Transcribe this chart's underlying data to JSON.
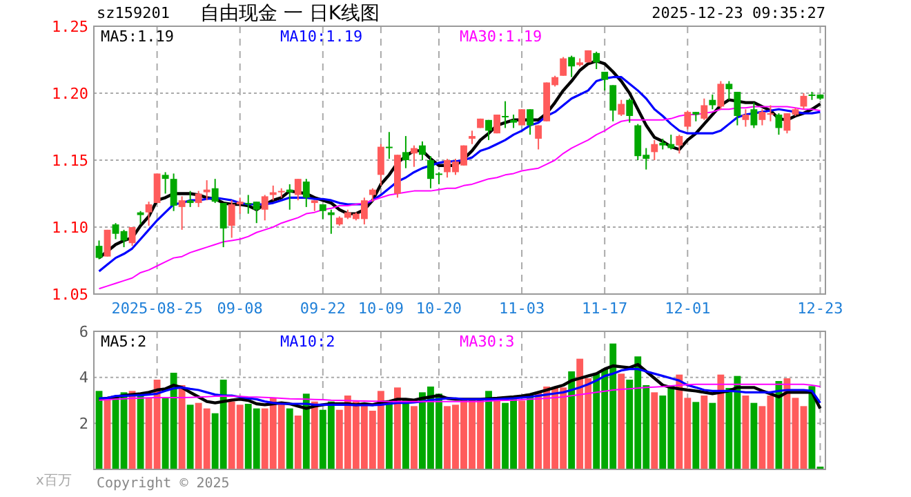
{
  "chart_data": [
    {
      "type": "candlestick",
      "title": "自由现金 一 日K线图",
      "subtitle": "sz159201",
      "annotations": [
        "2025-12-23 09:35:27"
      ],
      "categories": [
        null,
        null,
        null,
        null,
        null,
        null,
        null,
        "2025-08-25",
        null,
        null,
        null,
        null,
        null,
        null,
        null,
        null,
        null,
        "09-08",
        null,
        null,
        null,
        null,
        null,
        null,
        null,
        null,
        null,
        "09-22",
        null,
        null,
        null,
        null,
        null,
        null,
        "10-09",
        null,
        null,
        null,
        null,
        null,
        null,
        "10-20",
        null,
        null,
        null,
        null,
        null,
        null,
        null,
        null,
        null,
        "11-03",
        null,
        null,
        null,
        null,
        null,
        null,
        null,
        null,
        null,
        "11-17",
        null,
        null,
        null,
        null,
        null,
        null,
        null,
        null,
        null,
        "12-01",
        null,
        null,
        null,
        null,
        null,
        null,
        null,
        null,
        null,
        null,
        null,
        null,
        null,
        null,
        null,
        "12-23"
      ],
      "ohlc": [
        [
          1.086,
          1.09,
          1.076,
          1.077
        ],
        [
          1.078,
          1.098,
          1.078,
          1.098
        ],
        [
          1.102,
          1.103,
          1.091,
          1.095
        ],
        [
          1.097,
          1.098,
          1.085,
          1.09
        ],
        [
          1.088,
          1.1,
          1.086,
          1.1
        ],
        [
          1.111,
          1.112,
          1.102,
          1.109
        ],
        [
          1.111,
          1.119,
          1.101,
          1.117
        ],
        [
          1.118,
          1.14,
          1.118,
          1.14
        ],
        [
          1.139,
          1.141,
          1.125,
          1.136
        ],
        [
          1.136,
          1.14,
          1.112,
          1.116
        ],
        [
          1.115,
          1.123,
          1.098,
          1.12
        ],
        [
          1.12,
          1.127,
          1.115,
          1.118
        ],
        [
          1.118,
          1.127,
          1.115,
          1.125
        ],
        [
          1.126,
          1.135,
          1.12,
          1.128
        ],
        [
          1.129,
          1.136,
          1.118,
          1.119
        ],
        [
          1.118,
          1.118,
          1.085,
          1.099
        ],
        [
          1.101,
          1.12,
          1.092,
          1.117
        ],
        [
          1.117,
          1.122,
          1.11,
          1.119
        ],
        [
          1.118,
          1.124,
          1.11,
          1.117
        ],
        [
          1.119,
          1.119,
          1.103,
          1.113
        ],
        [
          1.113,
          1.124,
          1.105,
          1.123
        ],
        [
          1.124,
          1.131,
          1.12,
          1.126
        ],
        [
          1.126,
          1.129,
          1.122,
          1.127
        ],
        [
          1.128,
          1.132,
          1.113,
          1.126
        ],
        [
          1.124,
          1.136,
          1.12,
          1.136
        ],
        [
          1.134,
          1.136,
          1.115,
          1.122
        ],
        [
          1.118,
          1.12,
          1.112,
          1.12
        ],
        [
          1.117,
          1.117,
          1.106,
          1.112
        ],
        [
          1.111,
          1.113,
          1.095,
          1.109
        ],
        [
          1.102,
          1.108,
          1.101,
          1.107
        ],
        [
          1.107,
          1.113,
          1.106,
          1.111
        ],
        [
          1.106,
          1.111,
          1.105,
          1.11
        ],
        [
          1.106,
          1.122,
          1.102,
          1.12
        ],
        [
          1.124,
          1.129,
          1.119,
          1.128
        ],
        [
          1.139,
          1.162,
          1.131,
          1.16
        ],
        [
          1.16,
          1.171,
          1.151,
          1.159
        ],
        [
          1.125,
          1.154,
          1.122,
          1.154
        ],
        [
          1.156,
          1.168,
          1.144,
          1.15
        ],
        [
          1.155,
          1.161,
          1.145,
          1.159
        ],
        [
          1.161,
          1.164,
          1.15,
          1.154
        ],
        [
          1.15,
          1.153,
          1.129,
          1.136
        ],
        [
          1.14,
          1.141,
          1.132,
          1.139
        ],
        [
          1.141,
          1.151,
          1.137,
          1.15
        ],
        [
          1.141,
          1.151,
          1.139,
          1.149
        ],
        [
          1.146,
          1.161,
          1.146,
          1.161
        ],
        [
          1.166,
          1.172,
          1.162,
          1.168
        ],
        [
          1.174,
          1.181,
          1.174,
          1.181
        ],
        [
          1.18,
          1.18,
          1.165,
          1.172
        ],
        [
          1.17,
          1.184,
          1.17,
          1.184
        ],
        [
          1.183,
          1.194,
          1.174,
          1.182
        ],
        [
          1.18,
          1.184,
          1.174,
          1.178
        ],
        [
          1.176,
          1.188,
          1.176,
          1.188
        ],
        [
          1.188,
          1.188,
          1.169,
          1.176
        ],
        [
          1.166,
          1.176,
          1.158,
          1.176
        ],
        [
          1.179,
          1.208,
          1.179,
          1.208
        ],
        [
          1.206,
          1.213,
          1.205,
          1.212
        ],
        [
          1.213,
          1.227,
          1.213,
          1.226
        ],
        [
          1.227,
          1.228,
          1.212,
          1.22
        ],
        [
          1.221,
          1.226,
          1.22,
          1.223
        ],
        [
          1.223,
          1.232,
          1.223,
          1.232
        ],
        [
          1.23,
          1.231,
          1.218,
          1.223
        ],
        [
          1.216,
          1.216,
          1.202,
          1.21
        ],
        [
          1.206,
          1.206,
          1.179,
          1.187
        ],
        [
          1.184,
          1.195,
          1.183,
          1.192
        ],
        [
          1.195,
          1.196,
          1.178,
          1.183
        ],
        [
          1.176,
          1.177,
          1.15,
          1.153
        ],
        [
          1.154,
          1.159,
          1.143,
          1.151
        ],
        [
          1.156,
          1.165,
          1.15,
          1.162
        ],
        [
          1.163,
          1.166,
          1.158,
          1.161
        ],
        [
          1.162,
          1.169,
          1.158,
          1.159
        ],
        [
          1.161,
          1.169,
          1.155,
          1.168
        ],
        [
          1.175,
          1.187,
          1.173,
          1.186
        ],
        [
          1.186,
          1.186,
          1.179,
          1.184
        ],
        [
          1.181,
          1.196,
          1.18,
          1.191
        ],
        [
          1.195,
          1.199,
          1.188,
          1.191
        ],
        [
          1.19,
          1.209,
          1.188,
          1.207
        ],
        [
          1.207,
          1.209,
          1.195,
          1.203
        ],
        [
          1.201,
          1.201,
          1.176,
          1.183
        ],
        [
          1.18,
          1.188,
          1.175,
          1.184
        ],
        [
          1.188,
          1.193,
          1.174,
          1.176
        ],
        [
          1.18,
          1.188,
          1.176,
          1.186
        ],
        [
          1.184,
          1.191,
          1.179,
          1.185
        ],
        [
          1.184,
          1.185,
          1.169,
          1.174
        ],
        [
          1.172,
          1.185,
          1.17,
          1.185
        ],
        [
          1.184,
          1.189,
          1.183,
          1.188
        ],
        [
          1.19,
          1.2,
          1.188,
          1.198
        ],
        [
          1.199,
          1.201,
          1.195,
          1.198
        ],
        [
          1.199,
          1.199,
          1.195,
          1.196
        ]
      ],
      "colors": [
        "#00a800",
        "#ff5b5b",
        "#00a800",
        "#00a800",
        "#ff5b5b",
        "#00a800",
        "#ff5b5b",
        "#ff5b5b",
        "#00a800",
        "#00a800",
        "#ff5b5b",
        "#00a800",
        "#ff5b5b",
        "#ff5b5b",
        "#00a800",
        "#00a800",
        "#ff5b5b",
        "#ff5b5b",
        "#00a800",
        "#00a800",
        "#ff5b5b",
        "#ff5b5b",
        "#ff5b5b",
        "#00a800",
        "#ff5b5b",
        "#00a800",
        "#ff5b5b",
        "#00a800",
        "#00a800",
        "#ff5b5b",
        "#ff5b5b",
        "#ff5b5b",
        "#ff5b5b",
        "#ff5b5b",
        "#ff5b5b",
        "#00a800",
        "#ff5b5b",
        "#00a800",
        "#ff5b5b",
        "#00a800",
        "#00a800",
        "#00a800",
        "#ff5b5b",
        "#ff5b5b",
        "#ff5b5b",
        "#ff5b5b",
        "#ff5b5b",
        "#00a800",
        "#ff5b5b",
        "#00a800",
        "#00a800",
        "#ff5b5b",
        "#00a800",
        "#ff5b5b",
        "#ff5b5b",
        "#ff5b5b",
        "#ff5b5b",
        "#00a800",
        "#ff5b5b",
        "#ff5b5b",
        "#00a800",
        "#00a800",
        "#00a800",
        "#ff5b5b",
        "#00a800",
        "#00a800",
        "#00a800",
        "#ff5b5b",
        "#00a800",
        "#00a800",
        "#ff5b5b",
        "#ff5b5b",
        "#00a800",
        "#ff5b5b",
        "#00a800",
        "#ff5b5b",
        "#00a800",
        "#00a800",
        "#ff5b5b",
        "#00a800",
        "#ff5b5b",
        "#ff5b5b",
        "#00a800",
        "#ff5b5b",
        "#ff5b5b",
        "#ff5b5b",
        "#00a800",
        "#00a800"
      ],
      "series": [
        {
          "type": "line",
          "name": "MA5:1.19",
          "color": "#000000",
          "values": [
            1.077,
            1.082,
            1.087,
            1.09,
            1.092,
            1.101,
            1.108,
            1.12,
            1.122,
            1.125,
            1.125,
            1.125,
            1.124,
            1.122,
            1.121,
            1.118,
            1.117,
            1.117,
            1.116,
            1.113,
            1.117,
            1.12,
            1.122,
            1.127,
            1.126,
            1.125,
            1.122,
            1.12,
            1.118,
            1.113,
            1.11,
            1.11,
            1.113,
            1.12,
            1.132,
            1.139,
            1.148,
            1.153,
            1.157,
            1.157,
            1.151,
            1.146,
            1.146,
            1.146,
            1.151,
            1.157,
            1.165,
            1.17,
            1.176,
            1.178,
            1.18,
            1.18,
            1.18,
            1.18,
            1.185,
            1.193,
            1.202,
            1.209,
            1.217,
            1.222,
            1.224,
            1.222,
            1.216,
            1.209,
            1.2,
            1.188,
            1.176,
            1.167,
            1.164,
            1.16,
            1.158,
            1.165,
            1.17,
            1.177,
            1.184,
            1.191,
            1.195,
            1.194,
            1.193,
            1.193,
            1.19,
            1.187,
            1.181,
            1.18,
            1.183,
            1.185,
            1.188,
            1.192
          ]
        },
        {
          "type": "line",
          "name": "MA10:1.19",
          "color": "#0000ff",
          "values": [
            1.067,
            1.072,
            1.077,
            1.08,
            1.084,
            1.091,
            1.098,
            1.105,
            1.111,
            1.117,
            1.118,
            1.12,
            1.12,
            1.121,
            1.122,
            1.121,
            1.12,
            1.118,
            1.117,
            1.117,
            1.117,
            1.118,
            1.12,
            1.122,
            1.122,
            1.122,
            1.121,
            1.121,
            1.12,
            1.118,
            1.117,
            1.117,
            1.117,
            1.12,
            1.124,
            1.129,
            1.134,
            1.137,
            1.141,
            1.144,
            1.146,
            1.148,
            1.149,
            1.149,
            1.15,
            1.152,
            1.157,
            1.159,
            1.162,
            1.165,
            1.169,
            1.172,
            1.176,
            1.178,
            1.183,
            1.186,
            1.191,
            1.196,
            1.199,
            1.202,
            1.209,
            1.211,
            1.212,
            1.212,
            1.207,
            1.202,
            1.196,
            1.188,
            1.183,
            1.177,
            1.172,
            1.17,
            1.17,
            1.17,
            1.17,
            1.172,
            1.177,
            1.182,
            1.184,
            1.185,
            1.186,
            1.187,
            1.188,
            1.187,
            1.186,
            1.185,
            1.185,
            1.186
          ]
        },
        {
          "type": "line",
          "name": "MA30:1.19",
          "color": "#ff00ff",
          "values": [
            1.054,
            1.056,
            1.058,
            1.06,
            1.062,
            1.066,
            1.068,
            1.071,
            1.074,
            1.077,
            1.078,
            1.081,
            1.083,
            1.085,
            1.087,
            1.089,
            1.09,
            1.091,
            1.093,
            1.096,
            1.098,
            1.1,
            1.103,
            1.105,
            1.107,
            1.11,
            1.111,
            1.113,
            1.114,
            1.116,
            1.116,
            1.117,
            1.118,
            1.12,
            1.122,
            1.124,
            1.125,
            1.126,
            1.127,
            1.127,
            1.127,
            1.128,
            1.129,
            1.129,
            1.131,
            1.132,
            1.134,
            1.136,
            1.137,
            1.139,
            1.14,
            1.142,
            1.143,
            1.144,
            1.147,
            1.15,
            1.155,
            1.159,
            1.162,
            1.165,
            1.169,
            1.172,
            1.176,
            1.179,
            1.18,
            1.18,
            1.18,
            1.18,
            1.18,
            1.181,
            1.183,
            1.184,
            1.184,
            1.185,
            1.186,
            1.188,
            1.188,
            1.189,
            1.189,
            1.19,
            1.19,
            1.19,
            1.19,
            1.19,
            1.189,
            1.188,
            1.188,
            1.187
          ]
        }
      ],
      "ylim": [
        1.05,
        1.25
      ],
      "yticks": [
        {
          "value": 1.05,
          "label": "1.05"
        },
        {
          "value": 1.1,
          "label": "1.10"
        },
        {
          "value": 1.15,
          "label": "1.15"
        },
        {
          "value": 1.2,
          "label": "1.20"
        },
        {
          "value": 1.25,
          "label": "1.25"
        }
      ],
      "grid": true,
      "legend": "top left"
    },
    {
      "type": "bar",
      "ylabel": "x百万",
      "annotations": [
        "Copyright © 2025"
      ],
      "categories": [
        null,
        null,
        null,
        null,
        null,
        null,
        null,
        null,
        null,
        null,
        null,
        null,
        null,
        null,
        null,
        null,
        null,
        null,
        null,
        null,
        null,
        null,
        null,
        null,
        null,
        null,
        null,
        null,
        null,
        null,
        null,
        null,
        null,
        null,
        null,
        null,
        null,
        null,
        null,
        null,
        null,
        null,
        null,
        null,
        null,
        null,
        null,
        null,
        null,
        null,
        null,
        null,
        null,
        null,
        null,
        null,
        null,
        null,
        null,
        null,
        null,
        null,
        null,
        null,
        null,
        null,
        null,
        null,
        null,
        null,
        null,
        null,
        null,
        null,
        null,
        null,
        null,
        null,
        null,
        null,
        null,
        null,
        null,
        null,
        null,
        null,
        null,
        null
      ],
      "values": [
        3.41,
        3.05,
        3.21,
        3.35,
        3.41,
        3.29,
        3.09,
        3.9,
        3.15,
        4.2,
        3.66,
        2.81,
        2.89,
        2.65,
        2.44,
        3.9,
        2.95,
        2.81,
        2.85,
        2.65,
        2.65,
        3.09,
        2.85,
        2.65,
        2.34,
        3.29,
        2.95,
        2.59,
        2.95,
        2.59,
        3.21,
        2.95,
        2.85,
        2.55,
        3.41,
        2.95,
        3.56,
        3.09,
        2.75,
        3.35,
        3.6,
        3.29,
        2.75,
        2.81,
        3.05,
        3.05,
        3.05,
        3.41,
        2.99,
        2.89,
        3.21,
        2.99,
        3.29,
        3.35,
        3.6,
        3.56,
        3.56,
        4.26,
        4.81,
        3.96,
        4.16,
        4.36,
        5.47,
        4.16,
        3.9,
        4.91,
        3.66,
        3.35,
        3.21,
        3.66,
        4.12,
        3.11,
        2.93,
        3.21,
        2.89,
        4.12,
        3.54,
        4.06,
        3.21,
        2.89,
        2.75,
        3.21,
        3.84,
        3.96,
        3.11,
        2.75,
        3.62,
        0.12
      ],
      "colors": [
        "#00a800",
        "#ff5b5b",
        "#00a800",
        "#00a800",
        "#ff5b5b",
        "#00a800",
        "#ff5b5b",
        "#ff5b5b",
        "#00a800",
        "#00a800",
        "#ff5b5b",
        "#00a800",
        "#ff5b5b",
        "#ff5b5b",
        "#00a800",
        "#00a800",
        "#ff5b5b",
        "#ff5b5b",
        "#00a800",
        "#00a800",
        "#ff5b5b",
        "#ff5b5b",
        "#ff5b5b",
        "#00a800",
        "#ff5b5b",
        "#00a800",
        "#ff5b5b",
        "#00a800",
        "#00a800",
        "#ff5b5b",
        "#ff5b5b",
        "#ff5b5b",
        "#ff5b5b",
        "#ff5b5b",
        "#ff5b5b",
        "#00a800",
        "#ff5b5b",
        "#00a800",
        "#ff5b5b",
        "#00a800",
        "#00a800",
        "#00a800",
        "#ff5b5b",
        "#ff5b5b",
        "#ff5b5b",
        "#ff5b5b",
        "#ff5b5b",
        "#00a800",
        "#ff5b5b",
        "#00a800",
        "#00a800",
        "#ff5b5b",
        "#00a800",
        "#ff5b5b",
        "#ff5b5b",
        "#ff5b5b",
        "#ff5b5b",
        "#00a800",
        "#ff5b5b",
        "#ff5b5b",
        "#00a800",
        "#00a800",
        "#00a800",
        "#ff5b5b",
        "#00a800",
        "#00a800",
        "#00a800",
        "#ff5b5b",
        "#00a800",
        "#00a800",
        "#ff5b5b",
        "#ff5b5b",
        "#00a800",
        "#ff5b5b",
        "#00a800",
        "#ff5b5b",
        "#00a800",
        "#00a800",
        "#ff5b5b",
        "#00a800",
        "#ff5b5b",
        "#ff5b5b",
        "#00a800",
        "#ff5b5b",
        "#ff5b5b",
        "#ff5b5b",
        "#00a800",
        "#00a800"
      ],
      "series": [
        {
          "type": "line",
          "name": "MA5:2",
          "color": "#000000",
          "values": [
            3.05,
            3.09,
            3.15,
            3.21,
            3.25,
            3.29,
            3.35,
            3.45,
            3.5,
            3.66,
            3.56,
            3.35,
            3.15,
            2.95,
            2.89,
            2.95,
            3.01,
            3.05,
            3.0,
            2.85,
            2.81,
            2.85,
            2.89,
            2.85,
            2.75,
            2.65,
            2.75,
            2.81,
            2.85,
            2.85,
            2.85,
            2.81,
            2.85,
            2.81,
            2.91,
            2.95,
            3.05,
            3.05,
            3.01,
            3.09,
            3.15,
            3.21,
            3.09,
            3.05,
            3.05,
            3.05,
            3.05,
            3.07,
            3.09,
            3.12,
            3.15,
            3.19,
            3.25,
            3.35,
            3.45,
            3.56,
            3.66,
            3.86,
            3.96,
            4.06,
            4.16,
            4.36,
            4.5,
            4.46,
            4.42,
            4.56,
            4.26,
            3.96,
            3.66,
            3.56,
            3.5,
            3.45,
            3.41,
            3.35,
            3.29,
            3.35,
            3.41,
            3.56,
            3.56,
            3.56,
            3.41,
            3.29,
            3.15,
            3.35,
            3.35,
            3.35,
            3.35,
            2.65
          ]
        },
        {
          "type": "line",
          "name": "MA10:2",
          "color": "#0000ff",
          "values": [
            3.09,
            3.1,
            3.19,
            3.2,
            3.21,
            3.22,
            3.25,
            3.29,
            3.41,
            3.52,
            3.56,
            3.5,
            3.45,
            3.35,
            3.25,
            3.21,
            3.21,
            3.15,
            3.09,
            3.05,
            2.95,
            2.89,
            2.85,
            2.85,
            2.85,
            2.85,
            2.81,
            2.81,
            2.81,
            2.81,
            2.81,
            2.79,
            2.79,
            2.79,
            2.81,
            2.85,
            2.89,
            2.89,
            2.91,
            2.95,
            3.01,
            3.05,
            3.09,
            3.09,
            3.05,
            3.05,
            3.05,
            3.05,
            3.05,
            3.07,
            3.09,
            3.12,
            3.15,
            3.2,
            3.25,
            3.3,
            3.35,
            3.45,
            3.56,
            3.7,
            3.86,
            4.06,
            4.16,
            4.3,
            4.36,
            4.36,
            4.26,
            4.16,
            4.06,
            3.96,
            3.86,
            3.66,
            3.56,
            3.45,
            3.41,
            3.41,
            3.41,
            3.39,
            3.35,
            3.35,
            3.35,
            3.35,
            3.41,
            3.45,
            3.45,
            3.45,
            3.41,
            2.89
          ]
        },
        {
          "type": "line",
          "name": "MA30:3",
          "color": "#ff00ff",
          "values": [
            3.01,
            3.03,
            3.05,
            3.07,
            3.09,
            3.1,
            3.11,
            3.12,
            3.12,
            3.12,
            3.12,
            3.13,
            3.14,
            3.16,
            3.18,
            3.19,
            3.18,
            3.17,
            3.15,
            3.14,
            3.13,
            3.11,
            3.09,
            3.07,
            3.06,
            3.05,
            3.04,
            3.03,
            3.01,
            3.0,
            2.99,
            2.98,
            2.97,
            2.96,
            2.96,
            2.95,
            2.95,
            2.95,
            2.95,
            2.95,
            2.95,
            2.95,
            2.95,
            2.95,
            2.95,
            2.95,
            2.95,
            2.97,
            2.99,
            3.0,
            3.01,
            3.03,
            3.05,
            3.07,
            3.09,
            3.12,
            3.15,
            3.2,
            3.25,
            3.3,
            3.35,
            3.4,
            3.45,
            3.48,
            3.5,
            3.53,
            3.56,
            3.58,
            3.6,
            3.63,
            3.66,
            3.68,
            3.7,
            3.7,
            3.7,
            3.7,
            3.7,
            3.7,
            3.7,
            3.7,
            3.7,
            3.7,
            3.7,
            3.7,
            3.7,
            3.7,
            3.66,
            3.6
          ]
        }
      ],
      "ylim": [
        0,
        6
      ],
      "yticks": [
        2,
        4,
        6
      ],
      "grid": true,
      "legend": "top left",
      "tick_labels": "y"
    }
  ]
}
